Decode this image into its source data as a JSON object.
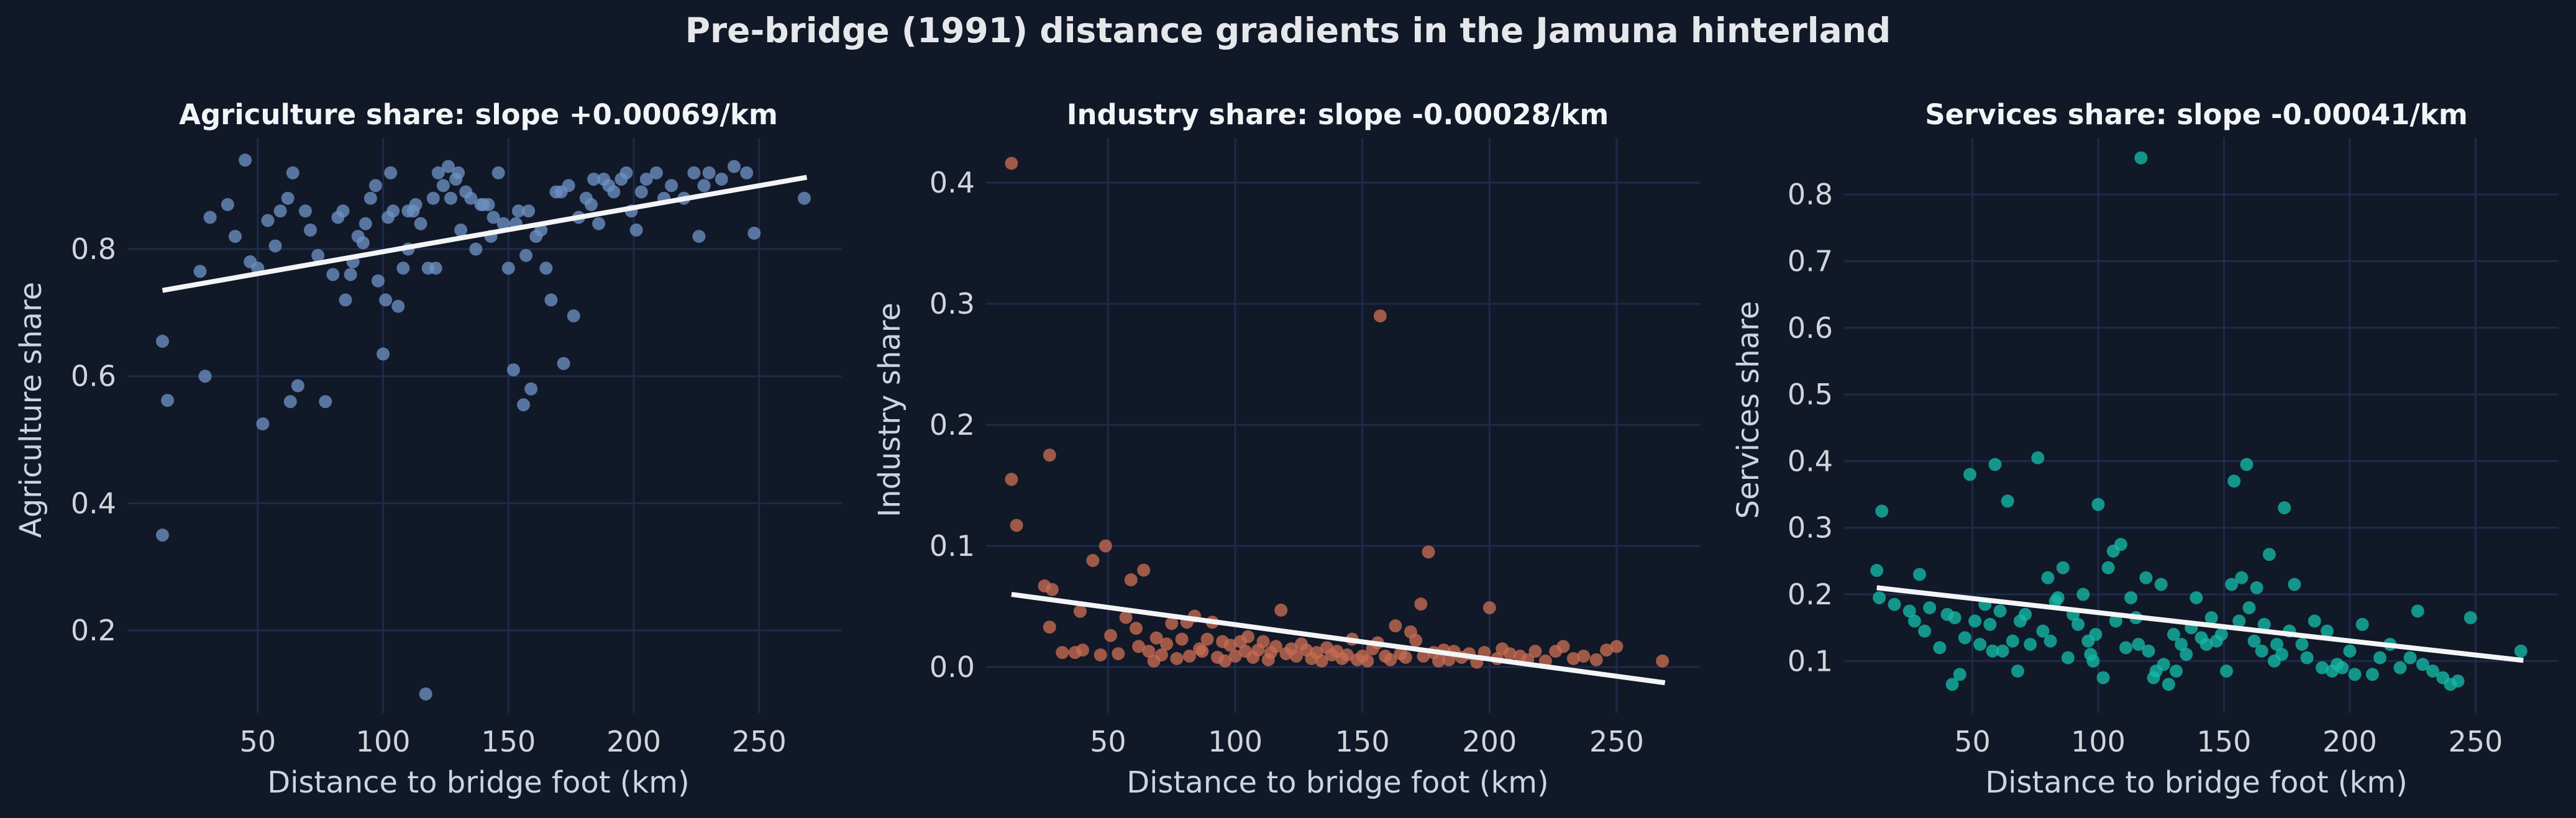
{
  "figure_title": "Pre-bridge (1991) distance gradients in the Jamuna hinterland",
  "colors": {
    "background": "#111827",
    "grid": "#1e2a4a",
    "fit_line": "#f3f4f6",
    "agriculture": "#6b8fc2",
    "industry": "#c76b52",
    "services": "#14b8a6"
  },
  "chart_data": [
    {
      "type": "scatter",
      "title": "Agriculture share: slope +0.00069/km",
      "xlabel": "Distance to bridge foot (km)",
      "ylabel": "Agriculture share",
      "xlim": [
        -2,
        283
      ],
      "ylim": [
        0.07,
        0.975
      ],
      "xticks": [
        50,
        100,
        150,
        200,
        250
      ],
      "yticks": [
        0.2,
        0.4,
        0.6,
        0.8
      ],
      "ytick_labels": [
        "0.2",
        "0.4",
        "0.6",
        "0.8"
      ],
      "grid": true,
      "fit": {
        "x": [
          12,
          269
        ],
        "y": [
          0.735,
          0.913
        ]
      },
      "points": [
        [
          12,
          0.655
        ],
        [
          14,
          0.562
        ],
        [
          12,
          0.35
        ],
        [
          27,
          0.765
        ],
        [
          29,
          0.6
        ],
        [
          31,
          0.85
        ],
        [
          38,
          0.87
        ],
        [
          41,
          0.82
        ],
        [
          45,
          0.94
        ],
        [
          47,
          0.78
        ],
        [
          50,
          0.77
        ],
        [
          54,
          0.845
        ],
        [
          52,
          0.525
        ],
        [
          57,
          0.805
        ],
        [
          59,
          0.86
        ],
        [
          62,
          0.88
        ],
        [
          63,
          0.56
        ],
        [
          64,
          0.92
        ],
        [
          66,
          0.585
        ],
        [
          69,
          0.86
        ],
        [
          71,
          0.83
        ],
        [
          74,
          0.79
        ],
        [
          77,
          0.56
        ],
        [
          80,
          0.76
        ],
        [
          82,
          0.85
        ],
        [
          84,
          0.86
        ],
        [
          85,
          0.72
        ],
        [
          88,
          0.78
        ],
        [
          90,
          0.82
        ],
        [
          93,
          0.84
        ],
        [
          95,
          0.88
        ],
        [
          97,
          0.9
        ],
        [
          98,
          0.75
        ],
        [
          100,
          0.635
        ],
        [
          101,
          0.72
        ],
        [
          103,
          0.92
        ],
        [
          104,
          0.86
        ],
        [
          106,
          0.71
        ],
        [
          108,
          0.77
        ],
        [
          110,
          0.8
        ],
        [
          112,
          0.86
        ],
        [
          113,
          0.87
        ],
        [
          115,
          0.84
        ],
        [
          117,
          0.1
        ],
        [
          118,
          0.77
        ],
        [
          121,
          0.77
        ],
        [
          122,
          0.92
        ],
        [
          124,
          0.9
        ],
        [
          126,
          0.93
        ],
        [
          127,
          0.88
        ],
        [
          129,
          0.91
        ],
        [
          131,
          0.83
        ],
        [
          133,
          0.89
        ],
        [
          135,
          0.88
        ],
        [
          137,
          0.8
        ],
        [
          139,
          0.87
        ],
        [
          140,
          0.87
        ],
        [
          142,
          0.87
        ],
        [
          144,
          0.85
        ],
        [
          146,
          0.92
        ],
        [
          148,
          0.84
        ],
        [
          150,
          0.77
        ],
        [
          152,
          0.61
        ],
        [
          154,
          0.86
        ],
        [
          156,
          0.555
        ],
        [
          157,
          0.79
        ],
        [
          158,
          0.86
        ],
        [
          159,
          0.58
        ],
        [
          161,
          0.82
        ],
        [
          163,
          0.83
        ],
        [
          165,
          0.77
        ],
        [
          167,
          0.72
        ],
        [
          169,
          0.89
        ],
        [
          171,
          0.89
        ],
        [
          172,
          0.62
        ],
        [
          174,
          0.9
        ],
        [
          176,
          0.695
        ],
        [
          178,
          0.85
        ],
        [
          181,
          0.88
        ],
        [
          184,
          0.91
        ],
        [
          186,
          0.84
        ],
        [
          188,
          0.91
        ],
        [
          190,
          0.9
        ],
        [
          192,
          0.89
        ],
        [
          195,
          0.91
        ],
        [
          197,
          0.92
        ],
        [
          199,
          0.86
        ],
        [
          201,
          0.83
        ],
        [
          205,
          0.91
        ],
        [
          209,
          0.92
        ],
        [
          212,
          0.88
        ],
        [
          215,
          0.9
        ],
        [
          220,
          0.88
        ],
        [
          224,
          0.92
        ],
        [
          226,
          0.82
        ],
        [
          228,
          0.9
        ],
        [
          230,
          0.92
        ],
        [
          235,
          0.91
        ],
        [
          240,
          0.93
        ],
        [
          245,
          0.92
        ],
        [
          248,
          0.825
        ],
        [
          268,
          0.88
        ],
        [
          110,
          0.86
        ],
        [
          120,
          0.88
        ],
        [
          130,
          0.92
        ],
        [
          87,
          0.76
        ],
        [
          92,
          0.81
        ],
        [
          102,
          0.85
        ],
        [
          143,
          0.82
        ],
        [
          153,
          0.84
        ],
        [
          183,
          0.87
        ],
        [
          203,
          0.89
        ]
      ]
    },
    {
      "type": "scatter",
      "title": "Industry share: slope -0.00028/km",
      "xlabel": "Distance to bridge foot (km)",
      "ylabel": "Industry share",
      "xlim": [
        2,
        283
      ],
      "ylim": [
        -0.038,
        0.437
      ],
      "xticks": [
        50,
        100,
        150,
        200,
        250
      ],
      "yticks": [
        0.0,
        0.1,
        0.2,
        0.3,
        0.4
      ],
      "ytick_labels": [
        "0.0",
        "0.1",
        "0.2",
        "0.3",
        "0.4"
      ],
      "grid": true,
      "fit": {
        "x": [
          12,
          269
        ],
        "y": [
          0.06,
          -0.013
        ]
      },
      "points": [
        [
          12,
          0.416
        ],
        [
          12,
          0.155
        ],
        [
          14,
          0.117
        ],
        [
          27,
          0.175
        ],
        [
          25,
          0.067
        ],
        [
          28,
          0.064
        ],
        [
          27,
          0.033
        ],
        [
          32,
          0.012
        ],
        [
          37,
          0.012
        ],
        [
          39,
          0.046
        ],
        [
          40,
          0.014
        ],
        [
          44,
          0.088
        ],
        [
          47,
          0.01
        ],
        [
          49,
          0.1
        ],
        [
          51,
          0.026
        ],
        [
          54,
          0.011
        ],
        [
          57,
          0.041
        ],
        [
          59,
          0.072
        ],
        [
          61,
          0.032
        ],
        [
          62,
          0.017
        ],
        [
          64,
          0.08
        ],
        [
          66,
          0.013
        ],
        [
          68,
          0.005
        ],
        [
          69,
          0.024
        ],
        [
          71,
          0.01
        ],
        [
          73,
          0.019
        ],
        [
          75,
          0.036
        ],
        [
          77,
          0.007
        ],
        [
          79,
          0.023
        ],
        [
          81,
          0.037
        ],
        [
          82,
          0.009
        ],
        [
          84,
          0.042
        ],
        [
          86,
          0.015
        ],
        [
          87,
          0.013
        ],
        [
          89,
          0.023
        ],
        [
          91,
          0.037
        ],
        [
          93,
          0.008
        ],
        [
          95,
          0.021
        ],
        [
          96,
          0.005
        ],
        [
          98,
          0.018
        ],
        [
          100,
          0.009
        ],
        [
          102,
          0.021
        ],
        [
          104,
          0.013
        ],
        [
          105,
          0.025
        ],
        [
          107,
          0.008
        ],
        [
          109,
          0.014
        ],
        [
          111,
          0.021
        ],
        [
          113,
          0.006
        ],
        [
          114,
          0.012
        ],
        [
          116,
          0.017
        ],
        [
          118,
          0.047
        ],
        [
          120,
          0.011
        ],
        [
          122,
          0.015
        ],
        [
          124,
          0.009
        ],
        [
          126,
          0.019
        ],
        [
          128,
          0.014
        ],
        [
          130,
          0.007
        ],
        [
          132,
          0.012
        ],
        [
          134,
          0.005
        ],
        [
          136,
          0.016
        ],
        [
          138,
          0.01
        ],
        [
          140,
          0.013
        ],
        [
          142,
          0.007
        ],
        [
          144,
          0.01
        ],
        [
          146,
          0.023
        ],
        [
          148,
          0.006
        ],
        [
          150,
          0.009
        ],
        [
          152,
          0.005
        ],
        [
          154,
          0.015
        ],
        [
          156,
          0.02
        ],
        [
          157,
          0.29
        ],
        [
          159,
          0.009
        ],
        [
          161,
          0.006
        ],
        [
          163,
          0.034
        ],
        [
          165,
          0.011
        ],
        [
          167,
          0.008
        ],
        [
          169,
          0.029
        ],
        [
          171,
          0.022
        ],
        [
          173,
          0.052
        ],
        [
          174,
          0.009
        ],
        [
          176,
          0.095
        ],
        [
          178,
          0.012
        ],
        [
          180,
          0.005
        ],
        [
          182,
          0.014
        ],
        [
          184,
          0.006
        ],
        [
          186,
          0.013
        ],
        [
          189,
          0.008
        ],
        [
          192,
          0.011
        ],
        [
          195,
          0.004
        ],
        [
          198,
          0.012
        ],
        [
          200,
          0.049
        ],
        [
          203,
          0.007
        ],
        [
          205,
          0.015
        ],
        [
          208,
          0.011
        ],
        [
          212,
          0.009
        ],
        [
          215,
          0.006
        ],
        [
          218,
          0.013
        ],
        [
          222,
          0.005
        ],
        [
          226,
          0.013
        ],
        [
          229,
          0.017
        ],
        [
          233,
          0.007
        ],
        [
          237,
          0.009
        ],
        [
          242,
          0.006
        ],
        [
          246,
          0.014
        ],
        [
          250,
          0.017
        ],
        [
          268,
          0.005
        ]
      ]
    },
    {
      "type": "scatter",
      "title": "Services share: slope -0.00041/km",
      "xlabel": "Distance to bridge foot (km)",
      "ylabel": "Services share",
      "xlim": [
        -1,
        283
      ],
      "ylim": [
        0.022,
        0.885
      ],
      "xticks": [
        50,
        100,
        150,
        200,
        250
      ],
      "yticks": [
        0.1,
        0.2,
        0.3,
        0.4,
        0.5,
        0.6,
        0.7,
        0.8
      ],
      "ytick_labels": [
        "0.1",
        "0.2",
        "0.3",
        "0.4",
        "0.5",
        "0.6",
        "0.7",
        "0.8"
      ],
      "grid": true,
      "fit": {
        "x": [
          12,
          269
        ],
        "y": [
          0.21,
          0.101
        ]
      },
      "points": [
        [
          12,
          0.236
        ],
        [
          13,
          0.195
        ],
        [
          14,
          0.325
        ],
        [
          19,
          0.185
        ],
        [
          25,
          0.175
        ],
        [
          27,
          0.16
        ],
        [
          29,
          0.23
        ],
        [
          31,
          0.145
        ],
        [
          33,
          0.18
        ],
        [
          37,
          0.12
        ],
        [
          40,
          0.17
        ],
        [
          42,
          0.065
        ],
        [
          43,
          0.165
        ],
        [
          45,
          0.08
        ],
        [
          47,
          0.135
        ],
        [
          49,
          0.38
        ],
        [
          51,
          0.16
        ],
        [
          53,
          0.125
        ],
        [
          55,
          0.185
        ],
        [
          57,
          0.155
        ],
        [
          58,
          0.115
        ],
        [
          59,
          0.395
        ],
        [
          61,
          0.175
        ],
        [
          62,
          0.115
        ],
        [
          64,
          0.34
        ],
        [
          66,
          0.13
        ],
        [
          68,
          0.085
        ],
        [
          69,
          0.16
        ],
        [
          71,
          0.17
        ],
        [
          73,
          0.125
        ],
        [
          76,
          0.405
        ],
        [
          78,
          0.145
        ],
        [
          80,
          0.225
        ],
        [
          81,
          0.13
        ],
        [
          83,
          0.19
        ],
        [
          84,
          0.195
        ],
        [
          86,
          0.24
        ],
        [
          88,
          0.105
        ],
        [
          90,
          0.17
        ],
        [
          92,
          0.155
        ],
        [
          94,
          0.2
        ],
        [
          96,
          0.13
        ],
        [
          97,
          0.11
        ],
        [
          98,
          0.1
        ],
        [
          99,
          0.14
        ],
        [
          100,
          0.335
        ],
        [
          102,
          0.075
        ],
        [
          104,
          0.24
        ],
        [
          106,
          0.265
        ],
        [
          107,
          0.16
        ],
        [
          109,
          0.275
        ],
        [
          111,
          0.12
        ],
        [
          113,
          0.195
        ],
        [
          115,
          0.165
        ],
        [
          116,
          0.125
        ],
        [
          117,
          0.855
        ],
        [
          119,
          0.225
        ],
        [
          120,
          0.115
        ],
        [
          122,
          0.075
        ],
        [
          123,
          0.085
        ],
        [
          125,
          0.215
        ],
        [
          126,
          0.095
        ],
        [
          128,
          0.065
        ],
        [
          130,
          0.14
        ],
        [
          131,
          0.085
        ],
        [
          133,
          0.125
        ],
        [
          135,
          0.11
        ],
        [
          137,
          0.15
        ],
        [
          139,
          0.195
        ],
        [
          141,
          0.135
        ],
        [
          143,
          0.125
        ],
        [
          145,
          0.165
        ],
        [
          147,
          0.13
        ],
        [
          149,
          0.14
        ],
        [
          151,
          0.085
        ],
        [
          153,
          0.215
        ],
        [
          154,
          0.37
        ],
        [
          156,
          0.16
        ],
        [
          157,
          0.225
        ],
        [
          159,
          0.395
        ],
        [
          160,
          0.18
        ],
        [
          162,
          0.13
        ],
        [
          163,
          0.21
        ],
        [
          165,
          0.115
        ],
        [
          166,
          0.155
        ],
        [
          168,
          0.26
        ],
        [
          170,
          0.1
        ],
        [
          171,
          0.125
        ],
        [
          173,
          0.11
        ],
        [
          174,
          0.33
        ],
        [
          176,
          0.145
        ],
        [
          178,
          0.215
        ],
        [
          181,
          0.125
        ],
        [
          183,
          0.105
        ],
        [
          186,
          0.16
        ],
        [
          189,
          0.09
        ],
        [
          191,
          0.145
        ],
        [
          193,
          0.085
        ],
        [
          195,
          0.095
        ],
        [
          197,
          0.09
        ],
        [
          200,
          0.115
        ],
        [
          202,
          0.08
        ],
        [
          205,
          0.155
        ],
        [
          209,
          0.08
        ],
        [
          212,
          0.105
        ],
        [
          216,
          0.125
        ],
        [
          220,
          0.09
        ],
        [
          224,
          0.105
        ],
        [
          227,
          0.175
        ],
        [
          229,
          0.095
        ],
        [
          233,
          0.085
        ],
        [
          237,
          0.075
        ],
        [
          240,
          0.065
        ],
        [
          243,
          0.07
        ],
        [
          248,
          0.165
        ],
        [
          268,
          0.115
        ]
      ]
    }
  ]
}
